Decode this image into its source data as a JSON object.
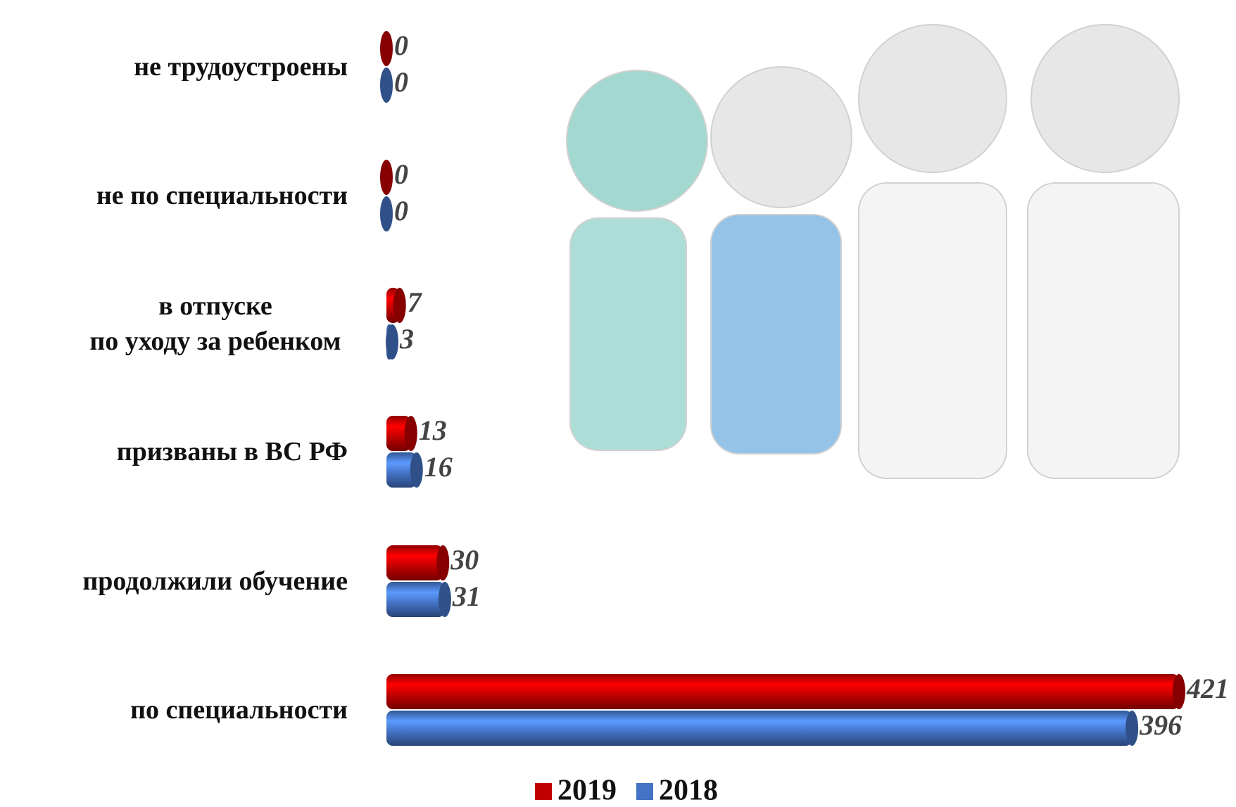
{
  "chart_data": {
    "type": "bar",
    "orientation": "horizontal",
    "categories": [
      "не трудоустроены",
      "не по специальности",
      "в отпуске\nпо уходу за ребенком",
      "призваны в ВС РФ",
      "продолжили обучение",
      "по специальности"
    ],
    "series": [
      {
        "name": "2019",
        "color": "#c00000",
        "values": [
          0,
          0,
          7,
          13,
          30,
          421
        ]
      },
      {
        "name": "2018",
        "color": "#4472c4",
        "values": [
          0,
          0,
          3,
          16,
          31,
          396
        ]
      }
    ],
    "legend": "bottom"
  }
}
